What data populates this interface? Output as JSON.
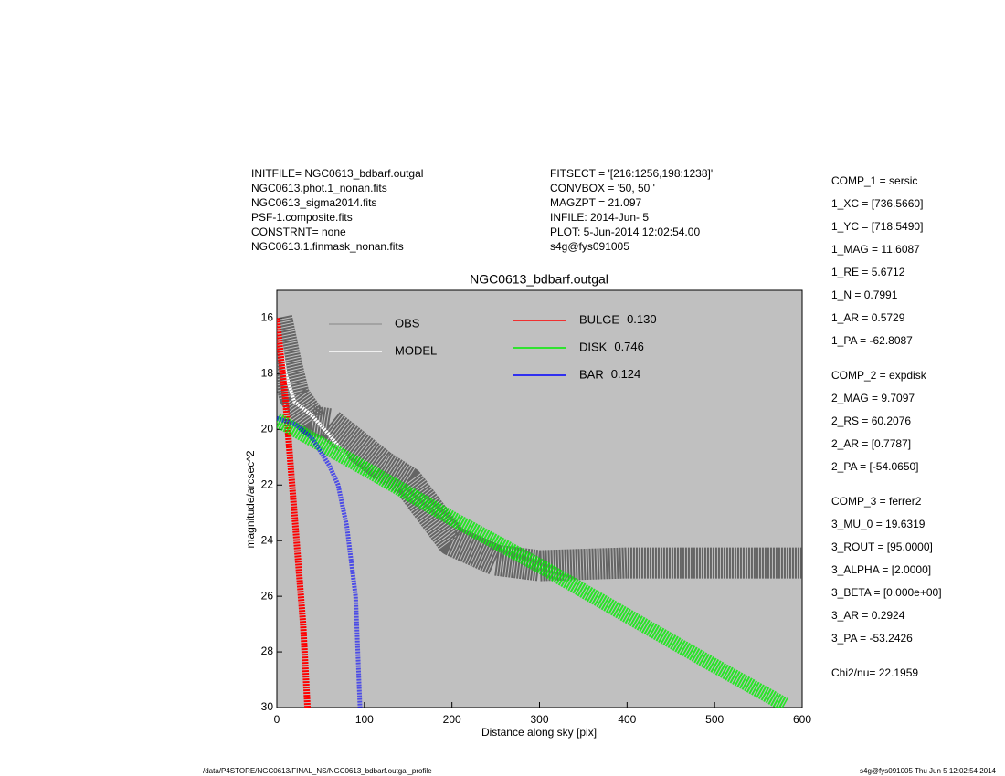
{
  "header_left": [
    "INITFILE= NGC0613_bdbarf.outgal",
    "NGC0613.phot.1_nonan.fits",
    "NGC0613_sigma2014.fits",
    "PSF-1.composite.fits",
    "CONSTRNT= none",
    "NGC0613.1.finmask_nonan.fits"
  ],
  "header_right": [
    "FITSECT = '[216:1256,198:1238]'",
    "CONVBOX = '50, 50  '",
    "MAGZPT =              21.097",
    "INFILE: 2014-Jun- 5",
    "PLOT:  5-Jun-2014 12:02:54.00",
    "s4g@fys091005"
  ],
  "params": [
    [
      "COMP_1  = sersic",
      "1_XC    = [736.5660]",
      "1_YC    = [718.5490]",
      "1_MAG   = 11.6087",
      "1_RE    = 5.6712",
      "1_N     = 0.7991",
      "1_AR    = 0.5729",
      "1_PA    = -62.8087"
    ],
    [
      "COMP_2  = expdisk",
      "2_MAG   = 9.7097",
      "2_RS    = 60.2076",
      "2_AR    = [0.7787]",
      "2_PA    = [-54.0650]"
    ],
    [
      "COMP_3  = ferrer2",
      "3_MU_0  = 19.6319",
      "3_ROUT  = [95.0000]",
      "3_ALPHA = [2.0000]",
      "3_BETA  = [0.000e+00]",
      "3_AR    = 0.2924",
      "3_PA    = -53.2426"
    ],
    [
      "Chi2/nu=      22.1959"
    ]
  ],
  "footer_left": "/data/P4STORE/NGC0613/FINAL_NS/NGC0613_bdbarf.outgal_profile",
  "footer_right": "s4g@fys091005  Thu Jun  5 12:02:54 2014",
  "chart_data": {
    "type": "scatter",
    "title": "NGC0613_bdbarf.outgal",
    "x_label": "Distance along sky [pix]",
    "y_label": "magnitude/arcsec^2",
    "xlim": [
      0,
      600
    ],
    "xticks": [
      0,
      100,
      200,
      300,
      400,
      500,
      600
    ],
    "ylim": [
      15,
      30
    ],
    "y_inverted": true,
    "yticks": [
      16,
      18,
      20,
      22,
      24,
      26,
      28,
      30
    ],
    "background": "#c0c0c0",
    "series": [
      {
        "name": "OBS",
        "color": "#555555",
        "legend_color": "#999999",
        "x": [
          0,
          10,
          20,
          40,
          60,
          80,
          100,
          120,
          150,
          200,
          250,
          300,
          400,
          500,
          600
        ],
        "values": [
          16,
          17.5,
          18.8,
          19.7,
          19.8,
          20.3,
          20.8,
          21.3,
          21.9,
          24,
          24.7,
          24.9,
          24.8,
          24.8,
          24.8
        ]
      },
      {
        "name": "MODEL",
        "color": "#ffffff",
        "legend_color": "#ffffff",
        "x": [
          0,
          10,
          20,
          40,
          60,
          80
        ],
        "values": [
          16,
          18,
          19,
          19.5,
          20.2,
          21
        ]
      },
      {
        "name": "BULGE",
        "fraction": 0.13,
        "fraction_label": "0.130",
        "color": "#ff0000",
        "legend_color": "#ff0000",
        "x": [
          0,
          10,
          20,
          30,
          35
        ],
        "values": [
          16,
          19,
          23,
          27,
          30
        ]
      },
      {
        "name": "DISK",
        "fraction": 0.746,
        "color": "#00ee00",
        "legend_color": "#00ee00",
        "x": [
          0,
          100,
          200,
          300,
          400,
          500,
          580
        ],
        "values": [
          19.65,
          21.4,
          23.2,
          24.9,
          26.7,
          28.5,
          29.9
        ]
      },
      {
        "name": "BAR",
        "fraction": 0.124,
        "color": "#0000ff",
        "legend_color": "#0000ff",
        "x": [
          0,
          20,
          40,
          60,
          70,
          80,
          90,
          95
        ],
        "values": [
          19.6,
          19.8,
          20.3,
          21.3,
          22,
          23.5,
          26,
          30
        ]
      }
    ]
  }
}
